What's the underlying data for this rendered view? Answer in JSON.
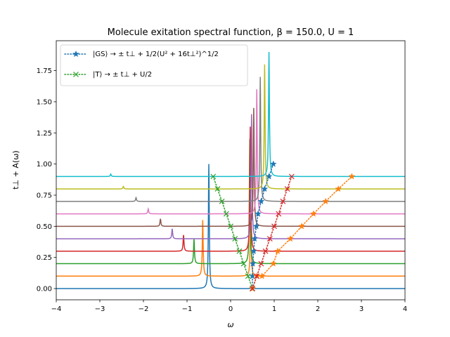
{
  "chart_data": {
    "type": "line",
    "title": "Molecule exitation spectral function, β = 150.0, U = 1",
    "xlabel": "ω",
    "ylabel": "t⊥ + A(ω)",
    "xlim": [
      -4,
      4
    ],
    "ylim": [
      -0.09,
      1.99
    ],
    "xticks": [
      -4,
      -3,
      -2,
      -1,
      0,
      1,
      2,
      3,
      4
    ],
    "yticks": [
      0.0,
      0.25,
      0.5,
      0.75,
      1.0,
      1.25,
      1.5,
      1.75
    ],
    "ytick_labels": [
      "0.00",
      "0.25",
      "0.50",
      "0.75",
      "1.00",
      "1.25",
      "1.50",
      "1.75"
    ],
    "grid": false,
    "legend_position": "top-left",
    "legend": [
      {
        "label": "|GS⟩ → ± t⊥ + 1/2(U² + 16t⊥²)^1/2",
        "marker": "star",
        "color": "#1f77b4"
      },
      {
        "label": "|T⟩ → ± t⊥ + U/2",
        "marker": "x",
        "color": "#2ca02c"
      }
    ],
    "spectra": [
      {
        "t": 0.0,
        "color": "#1f77b4",
        "peaks": [
          {
            "x": -0.5,
            "h": 1.0
          },
          {
            "x": 0.5,
            "h": 0.02
          }
        ]
      },
      {
        "t": 0.1,
        "color": "#ff7f0e",
        "peaks": [
          {
            "x": -0.64,
            "h": 0.45
          },
          {
            "x": 0.46,
            "h": 0.55
          }
        ]
      },
      {
        "t": 0.2,
        "color": "#2ca02c",
        "peaks": [
          {
            "x": -0.84,
            "h": 0.2
          },
          {
            "x": 0.44,
            "h": 1.0
          }
        ]
      },
      {
        "t": 0.3,
        "color": "#d62728",
        "peaks": [
          {
            "x": -1.08,
            "h": 0.13
          },
          {
            "x": 0.45,
            "h": 1.0
          }
        ]
      },
      {
        "t": 0.4,
        "color": "#9467bd",
        "peaks": [
          {
            "x": -1.34,
            "h": 0.08
          },
          {
            "x": 0.48,
            "h": 1.0
          }
        ]
      },
      {
        "t": 0.5,
        "color": "#8c564b",
        "peaks": [
          {
            "x": -1.61,
            "h": 0.06
          },
          {
            "x": 0.53,
            "h": 0.95
          }
        ]
      },
      {
        "t": 0.6,
        "color": "#e377c2",
        "peaks": [
          {
            "x": -1.89,
            "h": 0.04
          },
          {
            "x": 0.6,
            "h": 1.0
          }
        ]
      },
      {
        "t": 0.7,
        "color": "#7f7f7f",
        "peaks": [
          {
            "x": -2.17,
            "h": 0.03
          },
          {
            "x": 0.68,
            "h": 1.0
          }
        ]
      },
      {
        "t": 0.8,
        "color": "#bcbd22",
        "peaks": [
          {
            "x": -2.46,
            "h": 0.02
          },
          {
            "x": 0.78,
            "h": 1.0
          }
        ]
      },
      {
        "t": 0.9,
        "color": "#17becf",
        "peaks": [
          {
            "x": -2.75,
            "h": 0.02
          },
          {
            "x": 0.88,
            "h": 1.0
          }
        ]
      }
    ],
    "series": [
      {
        "marker": "star",
        "color": "#1f77b4",
        "x": [
          0.5,
          0.5,
          0.51,
          0.53,
          0.55,
          0.59,
          0.63,
          0.7,
          0.78,
          0.88,
          0.98
        ],
        "y": [
          0.0,
          0.1,
          0.2,
          0.3,
          0.4,
          0.5,
          0.6,
          0.7,
          0.8,
          0.9,
          1.0
        ]
      },
      {
        "marker": "star",
        "color": "#ff7f0e",
        "x": [
          0.5,
          0.6,
          0.72,
          0.98,
          1.08,
          1.37,
          1.63,
          1.9,
          2.18,
          2.47,
          2.78
        ],
        "y": [
          0.0,
          0.1,
          0.1,
          0.2,
          0.3,
          0.4,
          0.5,
          0.6,
          0.7,
          0.8,
          0.9
        ]
      },
      {
        "marker": "x",
        "color": "#2ca02c",
        "x": [
          0.5,
          0.4,
          0.3,
          0.2,
          0.1,
          0.0,
          -0.1,
          -0.2,
          -0.3,
          -0.4
        ],
        "y": [
          0.0,
          0.1,
          0.2,
          0.3,
          0.4,
          0.5,
          0.6,
          0.7,
          0.8,
          0.9
        ]
      },
      {
        "marker": "x",
        "color": "#d62728",
        "x": [
          0.5,
          0.6,
          0.7,
          0.8,
          0.9,
          1.0,
          1.1,
          1.2,
          1.3,
          1.4
        ],
        "y": [
          0.0,
          0.1,
          0.2,
          0.3,
          0.4,
          0.5,
          0.6,
          0.7,
          0.8,
          0.9
        ]
      }
    ]
  }
}
